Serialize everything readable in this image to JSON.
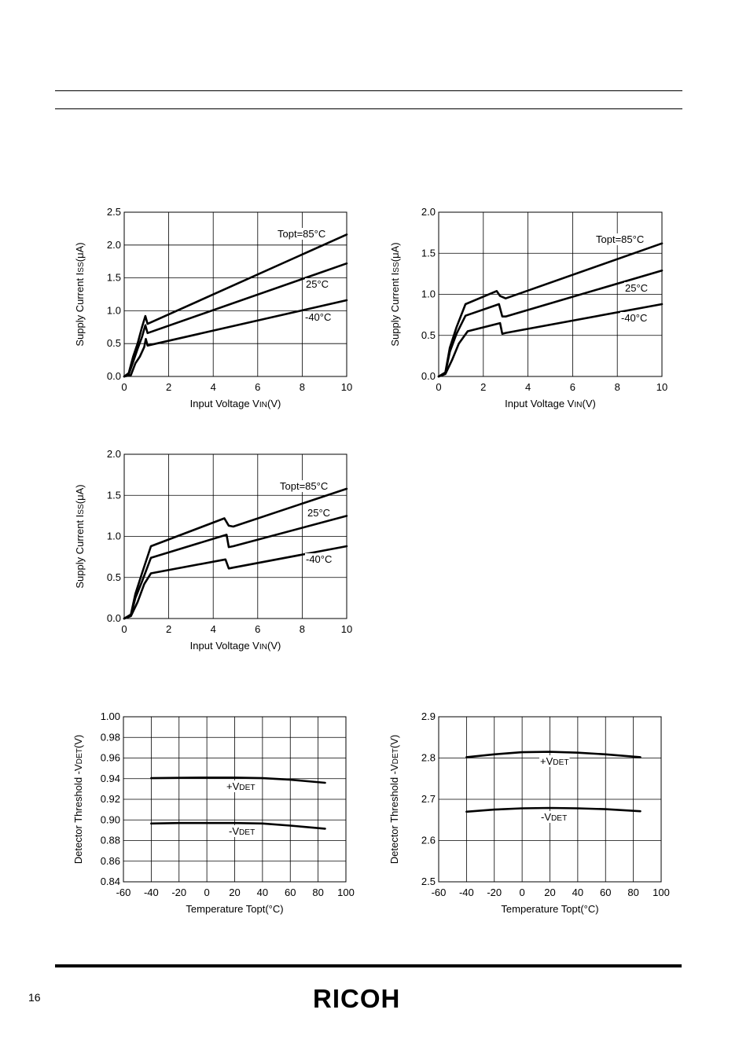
{
  "page": {
    "number": "16",
    "logo_text": "RICOH"
  },
  "chart_data": [
    {
      "type": "line",
      "ylabel": "Supply Current Iss(μA)",
      "xlabel": "Input Voltage VIN(V)",
      "xlim": [
        0,
        10
      ],
      "ylim": [
        0,
        2.5
      ],
      "xticks": [
        0,
        2,
        4,
        6,
        8,
        10
      ],
      "yticks": [
        0,
        0.5,
        1.0,
        1.5,
        2.0,
        2.5
      ],
      "ytick_labels": [
        "0.0",
        "0.5",
        "1.0",
        "1.5",
        "2.0",
        "2.5"
      ],
      "grid": true,
      "series": [
        {
          "name": "Topt=85°C",
          "x": [
            0,
            0.2,
            0.4,
            0.6,
            0.8,
            0.95,
            1.05,
            10
          ],
          "y": [
            0,
            0.05,
            0.3,
            0.5,
            0.75,
            0.92,
            0.8,
            2.16
          ]
        },
        {
          "name": "25°C",
          "x": [
            0,
            0.2,
            0.4,
            0.6,
            0.8,
            0.95,
            1.05,
            10
          ],
          "y": [
            0,
            0.03,
            0.22,
            0.42,
            0.6,
            0.78,
            0.66,
            1.72
          ]
        },
        {
          "name": "-40°C",
          "x": [
            0,
            0.3,
            0.5,
            0.7,
            0.9,
            0.97,
            1.05,
            10
          ],
          "y": [
            0,
            0.02,
            0.2,
            0.3,
            0.45,
            0.57,
            0.47,
            1.16
          ]
        }
      ]
    },
    {
      "type": "line",
      "ylabel": "Supply Current Iss(μA)",
      "xlabel": "Input Voltage VIN(V)",
      "xlim": [
        0,
        10
      ],
      "ylim": [
        0,
        2.0
      ],
      "xticks": [
        0,
        2,
        4,
        6,
        8,
        10
      ],
      "yticks": [
        0,
        0.5,
        1.0,
        1.5,
        2.0
      ],
      "ytick_labels": [
        "0.0",
        "0.5",
        "1.0",
        "1.5",
        "2.0"
      ],
      "grid": true,
      "series": [
        {
          "name": "Topt=85°C",
          "x": [
            0,
            0.3,
            0.5,
            0.8,
            1.2,
            2.6,
            2.75,
            3.0,
            10
          ],
          "y": [
            0,
            0.05,
            0.35,
            0.6,
            0.88,
            1.04,
            0.98,
            0.95,
            1.62
          ]
        },
        {
          "name": "25°C",
          "x": [
            0,
            0.3,
            0.5,
            0.8,
            1.2,
            2.7,
            2.85,
            3.0,
            10
          ],
          "y": [
            0,
            0.04,
            0.3,
            0.52,
            0.74,
            0.88,
            0.73,
            0.73,
            1.29
          ]
        },
        {
          "name": "-40°C",
          "x": [
            0,
            0.3,
            0.6,
            0.9,
            1.3,
            2.75,
            2.85,
            3.0,
            10
          ],
          "y": [
            0,
            0.03,
            0.2,
            0.4,
            0.55,
            0.65,
            0.52,
            0.53,
            0.88
          ]
        }
      ]
    },
    {
      "type": "line",
      "ylabel": "Supply Current Iss(μA)",
      "xlabel": "Input Voltage VIN(V)",
      "xlim": [
        0,
        10
      ],
      "ylim": [
        0,
        2.0
      ],
      "xticks": [
        0,
        2,
        4,
        6,
        8,
        10
      ],
      "yticks": [
        0,
        0.5,
        1.0,
        1.5,
        2.0
      ],
      "ytick_labels": [
        "0.0",
        "0.5",
        "1.0",
        "1.5",
        "2.0"
      ],
      "grid": true,
      "series": [
        {
          "name": "Topt=85°C",
          "x": [
            0,
            0.3,
            0.5,
            0.8,
            1.2,
            4.5,
            4.7,
            4.9,
            10
          ],
          "y": [
            0,
            0.05,
            0.3,
            0.55,
            0.88,
            1.22,
            1.13,
            1.12,
            1.58
          ]
        },
        {
          "name": "25°C",
          "x": [
            0,
            0.3,
            0.5,
            0.8,
            1.2,
            4.6,
            4.7,
            4.9,
            10
          ],
          "y": [
            0,
            0.04,
            0.25,
            0.45,
            0.74,
            1.02,
            0.87,
            0.88,
            1.25
          ]
        },
        {
          "name": "-40°C",
          "x": [
            0,
            0.3,
            0.6,
            0.9,
            1.2,
            4.55,
            4.7,
            4.9,
            10
          ],
          "y": [
            0,
            0.03,
            0.2,
            0.42,
            0.55,
            0.72,
            0.61,
            0.62,
            0.88
          ]
        }
      ]
    },
    {
      "type": "line",
      "ylabel": "Detector Threshold -VDET(V)",
      "xlabel": "Temperature Topt(°C)",
      "xlim": [
        -60,
        100
      ],
      "ylim": [
        0.84,
        1.0
      ],
      "xticks": [
        -60,
        -40,
        -20,
        0,
        20,
        40,
        60,
        80,
        100
      ],
      "yticks": [
        0.84,
        0.86,
        0.88,
        0.9,
        0.92,
        0.94,
        0.96,
        0.98,
        1.0
      ],
      "ytick_labels": [
        "0.84",
        "0.86",
        "0.88",
        "0.90",
        "0.92",
        "0.94",
        "0.96",
        "0.98",
        "1.00"
      ],
      "grid": true,
      "series": [
        {
          "name": "+VDET",
          "x": [
            -40,
            -20,
            0,
            20,
            40,
            60,
            85
          ],
          "y": [
            0.9405,
            0.9408,
            0.941,
            0.941,
            0.9405,
            0.939,
            0.936
          ]
        },
        {
          "name": "-VDET",
          "x": [
            -40,
            -20,
            0,
            20,
            40,
            60,
            85
          ],
          "y": [
            0.8965,
            0.897,
            0.897,
            0.897,
            0.8965,
            0.8945,
            0.8915
          ]
        }
      ]
    },
    {
      "type": "line",
      "ylabel": "Detector Threshold -VDET(V)",
      "xlabel": "Temperature Topt(°C)",
      "xlim": [
        -60,
        100
      ],
      "ylim": [
        2.5,
        2.9
      ],
      "xticks": [
        -60,
        -40,
        -20,
        0,
        20,
        40,
        60,
        80,
        100
      ],
      "yticks": [
        2.5,
        2.6,
        2.7,
        2.8,
        2.9
      ],
      "ytick_labels": [
        "2.5",
        "2.6",
        "2.7",
        "2.8",
        "2.9"
      ],
      "grid": true,
      "series": [
        {
          "name": "+VDET",
          "x": [
            -40,
            -20,
            0,
            20,
            40,
            60,
            85
          ],
          "y": [
            2.802,
            2.809,
            2.814,
            2.815,
            2.813,
            2.809,
            2.802
          ]
        },
        {
          "name": "-VDET",
          "x": [
            -40,
            -20,
            0,
            20,
            40,
            60,
            85
          ],
          "y": [
            2.67,
            2.675,
            2.678,
            2.679,
            2.678,
            2.676,
            2.671
          ]
        }
      ]
    }
  ]
}
